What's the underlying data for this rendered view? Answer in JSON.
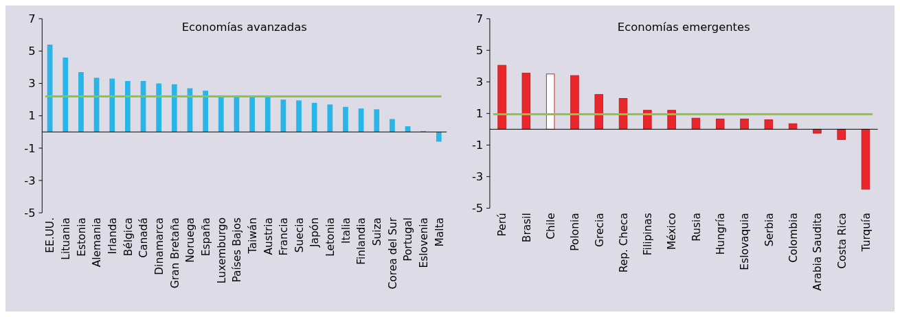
{
  "chart_data": [
    {
      "type": "bar",
      "title": "Economías avanzadas",
      "categories": [
        "EE.UU.",
        "Lituania",
        "Estonia",
        "Alemania",
        "Irlanda",
        "Bélgica",
        "Canadá",
        "Dinamarca",
        "Gran Bretaña",
        "Noruega",
        "España",
        "Luxemburgo",
        "Países Bajos",
        "Taiwán",
        "Austria",
        "Francia",
        "Suecia",
        "Japón",
        "Letonia",
        "Italia",
        "Finlandia",
        "Suiza",
        "Corea del Sur",
        "Portugal",
        "Eslovenia",
        "Malta"
      ],
      "values": [
        5.4,
        4.6,
        3.7,
        3.35,
        3.3,
        3.15,
        3.15,
        3.0,
        2.95,
        2.7,
        2.55,
        2.2,
        2.2,
        2.2,
        2.15,
        2.0,
        1.95,
        1.8,
        1.7,
        1.55,
        1.45,
        1.4,
        0.8,
        0.35,
        0.05,
        -0.6
      ],
      "color": "#29b5e8",
      "ylim": [
        -5,
        7
      ],
      "yticks": [
        -5,
        -3,
        -1,
        1,
        3,
        5,
        7
      ],
      "grid": false,
      "ref_lines": [
        {
          "axis": "y",
          "value": 2.2,
          "color": "#8cc63f"
        }
      ]
    },
    {
      "type": "bar",
      "title": "Economías emergentes",
      "categories": [
        "Perú",
        "Brasil",
        "Chile",
        "Polonia",
        "Grecia",
        "Rep. Checa",
        "Filipinas",
        "México",
        "Rusia",
        "Hungría",
        "Eslovaquia",
        "Serbia",
        "Colombia",
        "Arabia Saudita",
        "Costa Rica",
        "Turquía"
      ],
      "values": [
        4.05,
        3.55,
        3.5,
        3.4,
        2.2,
        1.95,
        1.2,
        1.2,
        0.7,
        0.65,
        0.65,
        0.6,
        0.35,
        -0.25,
        -0.65,
        -3.8
      ],
      "colors": [
        "#e8262b",
        "#e8262b",
        "#ffffff",
        "#e8262b",
        "#e8262b",
        "#e8262b",
        "#e8262b",
        "#e8262b",
        "#e8262b",
        "#e8262b",
        "#e8262b",
        "#e8262b",
        "#e8262b",
        "#e8262b",
        "#e8262b",
        "#e8262b"
      ],
      "ylim": [
        -5,
        7
      ],
      "yticks": [
        -5,
        -3,
        -1,
        1,
        3,
        5,
        7
      ],
      "grid": false,
      "ref_lines": [
        {
          "axis": "y",
          "value": 0.95,
          "color": "#8cc63f"
        }
      ]
    }
  ]
}
